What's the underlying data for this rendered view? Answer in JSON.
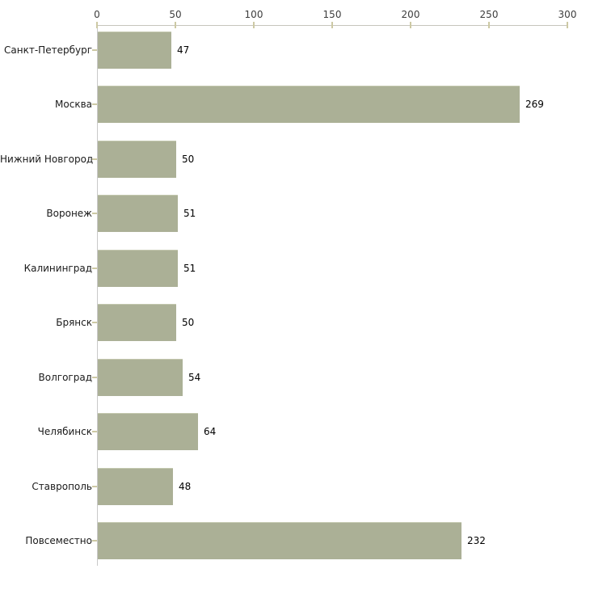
{
  "chart_data": {
    "type": "bar",
    "orientation": "horizontal",
    "title": "",
    "xlabel": "",
    "ylabel": "",
    "categories": [
      "Санкт-Петербург",
      "Москва",
      "Нижний Новгород",
      "Воронеж",
      "Калининград",
      "Брянск",
      "Волгоград",
      "Челябинск",
      "Ставрополь",
      "Повсеместно"
    ],
    "values": [
      47,
      269,
      50,
      51,
      51,
      50,
      54,
      64,
      48,
      232
    ],
    "x_ticks": [
      "0",
      "50",
      "100",
      "150",
      "200",
      "250",
      "300"
    ],
    "x_tick_values": [
      0,
      50,
      100,
      150,
      200,
      250,
      300
    ],
    "xlim": [
      0,
      300
    ],
    "grid": false,
    "legend": false,
    "value_labels_shown": true,
    "colors": {
      "background": "#ffffff",
      "bar_fill": "#abb096",
      "bar_top_edge": "#c3c7ae",
      "x_axis_line": "#c6c5bd",
      "y_axis_line": "#c9c9c9",
      "tick_mark": "#cdc9a4",
      "tick_label": "#3d3d3d",
      "category_label": "#1a1a1a",
      "value_label": "#000000"
    }
  }
}
